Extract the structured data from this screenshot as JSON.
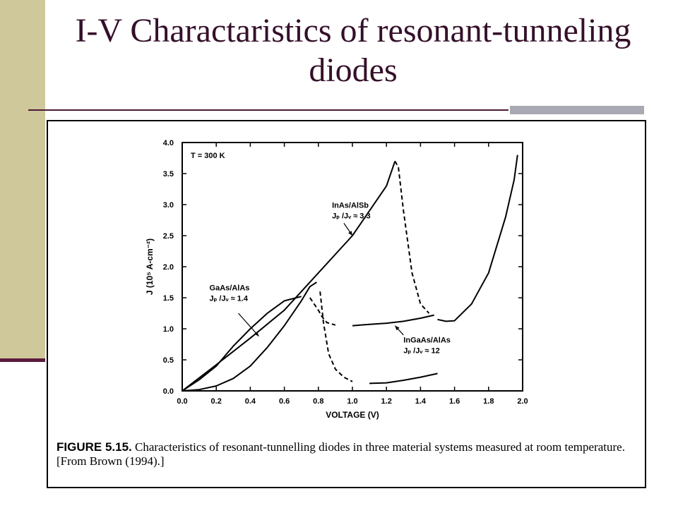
{
  "slide": {
    "title": "I-V Charactaristics of resonant-tunneling diodes"
  },
  "figure": {
    "label": "FIGURE 5.15.",
    "caption": "Characteristics of resonant-tunnelling diodes in three material systems measured at room temperature. [From Brown (1994).]"
  },
  "colors": {
    "sidebar": "#cfc89a",
    "title_text": "#35102a",
    "accent_line": "#5a1a3a",
    "gray_bar": "#a9a9b3"
  },
  "chart_data": {
    "type": "line",
    "title": "",
    "xlabel": "VOLTAGE (V)",
    "ylabel": "J (10⁵ A-cm⁻²)",
    "xlim": [
      0.0,
      2.0
    ],
    "ylim": [
      0.0,
      4.0
    ],
    "x_ticks": [
      "0.0",
      "0.2",
      "0.4",
      "0.6",
      "0.8",
      "1.0",
      "1.2",
      "1.4",
      "1.6",
      "1.8",
      "2.0"
    ],
    "y_ticks": [
      "0.0",
      "0.5",
      "1.0",
      "1.5",
      "2.0",
      "2.5",
      "3.0",
      "3.5",
      "4.0"
    ],
    "grid": false,
    "temperature_label": "T = 300 K",
    "series": [
      {
        "name": "InAs/AlSb",
        "ratio_label": "Jₚ /Jᵥ ≈ 3.3",
        "x": [
          0.0,
          0.2,
          0.4,
          0.6,
          0.8,
          1.0,
          1.2,
          1.25,
          1.27,
          1.3,
          1.35,
          1.4,
          1.45,
          1.5,
          1.55,
          1.6,
          1.7,
          1.8,
          1.9,
          1.95,
          1.97
        ],
        "y": [
          0.0,
          0.42,
          0.85,
          1.3,
          1.9,
          2.5,
          3.3,
          3.7,
          3.6,
          2.9,
          1.9,
          1.4,
          1.25,
          1.15,
          1.12,
          1.13,
          1.4,
          1.9,
          2.8,
          3.4,
          3.8
        ],
        "dashed_range": [
          1.25,
          1.48
        ]
      },
      {
        "name": "GaAs/AlAs",
        "ratio_label": "Jₚ /Jᵥ ≈ 1.4",
        "x": [
          0.0,
          0.1,
          0.2,
          0.3,
          0.4,
          0.5,
          0.6,
          0.7,
          0.75,
          0.8,
          0.82,
          0.85,
          0.9,
          1.0,
          1.1,
          1.2,
          1.3,
          1.4,
          1.48
        ],
        "y": [
          0.0,
          0.18,
          0.4,
          0.72,
          1.0,
          1.25,
          1.45,
          1.52,
          1.5,
          1.3,
          1.2,
          1.1,
          1.06,
          1.05,
          1.07,
          1.09,
          1.12,
          1.17,
          1.22
        ],
        "dashed_range": [
          0.73,
          0.95
        ]
      },
      {
        "name": "InGaAs/AlAs",
        "ratio_label": "Jₚ /Jᵥ ≈ 12",
        "x": [
          0.0,
          0.1,
          0.2,
          0.3,
          0.4,
          0.5,
          0.6,
          0.7,
          0.75,
          0.79,
          0.81,
          0.83,
          0.86,
          0.9,
          0.95,
          1.0,
          1.1,
          1.2,
          1.3,
          1.4,
          1.5
        ],
        "y": [
          0.0,
          0.02,
          0.08,
          0.2,
          0.4,
          0.7,
          1.05,
          1.45,
          1.68,
          1.75,
          1.6,
          1.1,
          0.6,
          0.35,
          0.22,
          0.15,
          0.12,
          0.13,
          0.17,
          0.22,
          0.28
        ],
        "dashed_range": [
          0.8,
          1.02
        ]
      }
    ]
  }
}
